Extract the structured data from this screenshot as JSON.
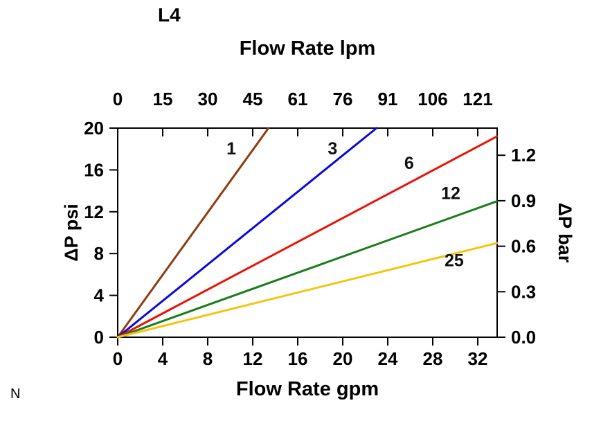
{
  "page": {
    "corner_note": "N"
  },
  "chart_data": {
    "type": "line",
    "title": "L4",
    "grid": false,
    "legend": false,
    "axes": {
      "top": {
        "label": "Flow Rate lpm",
        "ticks": [
          "0",
          "15",
          "30",
          "45",
          "61",
          "76",
          "91",
          "106",
          "121"
        ]
      },
      "bottom": {
        "label": "Flow Rate gpm",
        "ticks": [
          "0",
          "4",
          "8",
          "12",
          "16",
          "20",
          "24",
          "28",
          "32"
        ],
        "range": [
          0,
          33.7
        ]
      },
      "left": {
        "label": "ΔP psi",
        "ticks": [
          "0",
          "4",
          "8",
          "12",
          "16",
          "20"
        ],
        "range": [
          0,
          20
        ]
      },
      "right": {
        "label": "ΔP bar",
        "ticks": [
          "0.0",
          "0.3",
          "0.6",
          "0.9",
          "1.2"
        ],
        "psi_per_bar": 14.5038
      }
    },
    "series": [
      {
        "name": "1",
        "color": "#8f3a0e",
        "points": [
          [
            0,
            0
          ],
          [
            13.4,
            20.0
          ]
        ],
        "label_at": [
          10.1,
          17.5
        ]
      },
      {
        "name": "3",
        "color": "#0808dd",
        "points": [
          [
            0,
            0
          ],
          [
            23.0,
            20.0
          ]
        ],
        "label_at": [
          19.1,
          17.5
        ]
      },
      {
        "name": "6",
        "color": "#ea1208",
        "points": [
          [
            0,
            0
          ],
          [
            33.7,
            19.2
          ]
        ],
        "label_at": [
          25.9,
          16.1
        ]
      },
      {
        "name": "12",
        "color": "#1a7c1a",
        "points": [
          [
            0,
            0
          ],
          [
            33.7,
            13.0
          ]
        ],
        "label_at": [
          29.6,
          13.2
        ]
      },
      {
        "name": "25",
        "color": "#f3c50f",
        "points": [
          [
            0,
            0
          ],
          [
            33.7,
            9.0
          ]
        ],
        "label_at": [
          29.9,
          6.8
        ]
      }
    ]
  }
}
